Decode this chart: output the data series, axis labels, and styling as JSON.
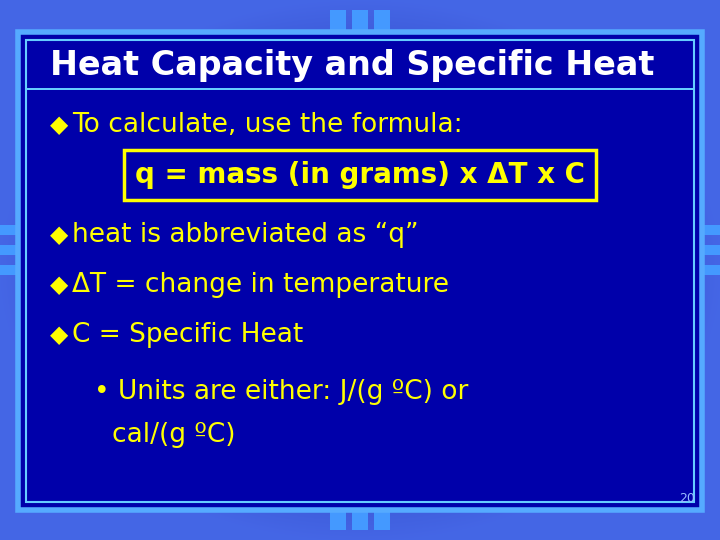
{
  "title": "Heat Capacity and Specific Heat",
  "title_color": "#FFFFFF",
  "title_fontsize": 24,
  "bg_outer_center": "#1144CC",
  "bg_outer_edge": "#4488FF",
  "bg_inner": "#0000AA",
  "border_color_outer": "#55AAFF",
  "border_color_inner": "#66CCFF",
  "bullet_color": "#FFFF00",
  "bullet_char": "◆",
  "body_lines": [
    {
      "text": "To calculate, use the formula:",
      "indent": 0.1,
      "bullet": true,
      "color": "#FFFF00",
      "fontsize": 19,
      "bold": false
    },
    {
      "text": "q = mass (in grams) x ΔT x C",
      "indent": 0.15,
      "bullet": false,
      "color": "#FFFF00",
      "fontsize": 20,
      "box": true,
      "bold": true
    },
    {
      "text": "heat is abbreviated as “q”",
      "indent": 0.1,
      "bullet": true,
      "color": "#FFFF00",
      "fontsize": 19,
      "bold": false
    },
    {
      "text": "ΔT = change in temperature",
      "indent": 0.1,
      "bullet": true,
      "color": "#FFFF00",
      "fontsize": 19,
      "bold": false
    },
    {
      "text": "C = Specific Heat",
      "indent": 0.1,
      "bullet": true,
      "color": "#FFFF00",
      "fontsize": 19,
      "bold": false
    },
    {
      "text": "• Units are either: J/(g ºC) or",
      "indent": 0.13,
      "bullet": false,
      "color": "#FFFF00",
      "fontsize": 19,
      "bold": false
    },
    {
      "text": "cal/(g ºC)",
      "indent": 0.155,
      "bullet": false,
      "color": "#FFFF00",
      "fontsize": 19,
      "bold": false
    }
  ],
  "side_arrow_color": "#3377EE",
  "page_number": "20",
  "page_num_color": "#99BBFF",
  "page_num_fontsize": 9,
  "title_bg_color": "#CCDDFF"
}
